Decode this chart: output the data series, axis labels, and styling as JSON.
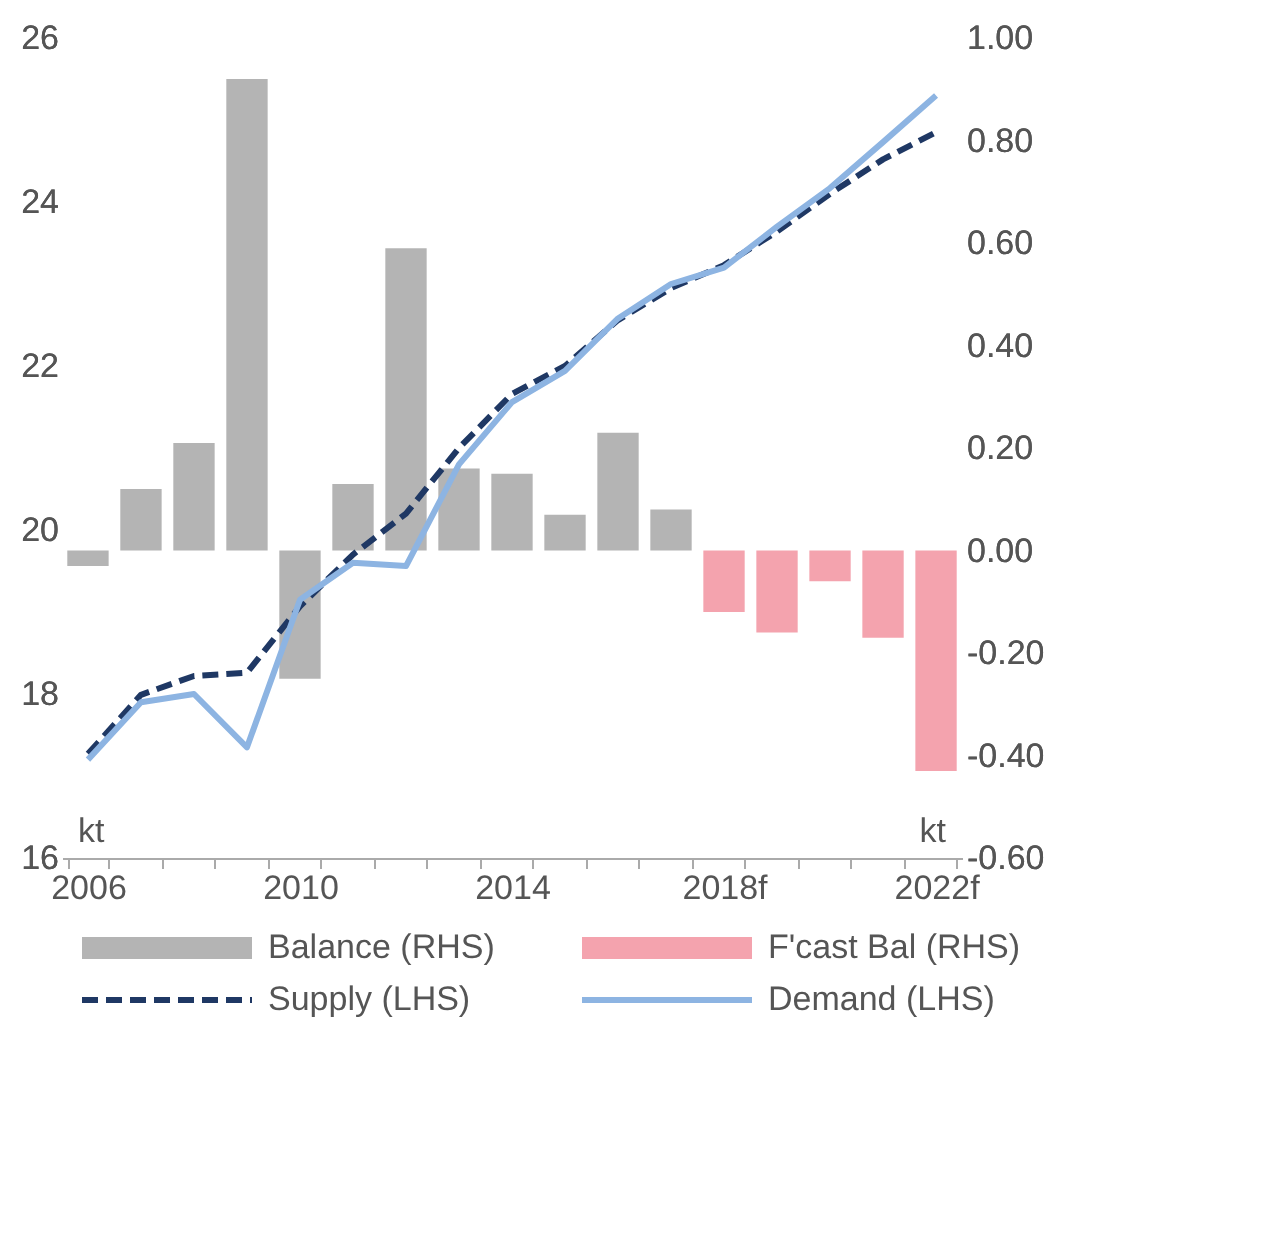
{
  "chart_data": {
    "type": "bar",
    "categories": [
      "2006",
      null,
      null,
      null,
      "2010",
      null,
      null,
      null,
      "2014",
      null,
      null,
      null,
      "2018f",
      null,
      null,
      null,
      "2022f"
    ],
    "series": [
      {
        "name": "Balance (RHS)",
        "axis": "y2",
        "color": "#b4b4b4",
        "values": [
          -0.03,
          0.12,
          0.21,
          0.92,
          -0.25,
          0.13,
          0.59,
          0.16,
          0.15,
          0.07,
          0.23,
          0.08,
          null,
          null,
          null,
          null,
          null
        ]
      },
      {
        "name": "F'cast Bal (RHS)",
        "axis": "y2",
        "color": "#f4a3ae",
        "values": [
          null,
          null,
          null,
          null,
          null,
          null,
          null,
          null,
          null,
          null,
          null,
          null,
          -0.12,
          -0.16,
          -0.06,
          -0.17,
          -0.43
        ]
      },
      {
        "name": "Supply (LHS)",
        "type": "line",
        "line_style": "dashed",
        "color": "#1f3864",
        "values": [
          17.27,
          17.99,
          18.22,
          18.26,
          19.07,
          19.7,
          20.2,
          21.0,
          21.66,
          22.0,
          22.56,
          22.95,
          23.23,
          23.64,
          24.1,
          24.52,
          24.85
        ]
      },
      {
        "name": "Demand (LHS)",
        "type": "line",
        "line_style": "solid",
        "color": "#8db4e2",
        "values": [
          17.2,
          17.9,
          18.0,
          17.35,
          19.15,
          19.6,
          19.56,
          20.8,
          21.56,
          21.94,
          22.58,
          23.0,
          23.2,
          23.7,
          24.17,
          24.73,
          25.3
        ]
      }
    ],
    "ylim": [
      16,
      26
    ],
    "yticks": [
      16,
      18,
      20,
      22,
      24,
      26
    ],
    "y2lim": [
      -0.6,
      1.0
    ],
    "y2ticks": [
      {
        "value": -0.6,
        "label": "-0.60"
      },
      {
        "value": -0.4,
        "label": "-0.40"
      },
      {
        "value": -0.2,
        "label": "-0.20"
      },
      {
        "value": 0,
        "label": "0.00"
      },
      {
        "value": 0.2,
        "label": "0.20"
      },
      {
        "value": 0.4,
        "label": "0.40"
      },
      {
        "value": 0.6,
        "label": "0.60"
      },
      {
        "value": 0.8,
        "label": "0.80"
      },
      {
        "value": 1.0,
        "label": "1.00"
      }
    ],
    "annotations": [
      "kt",
      "kt"
    ],
    "grid": false,
    "legend": "bottom"
  }
}
